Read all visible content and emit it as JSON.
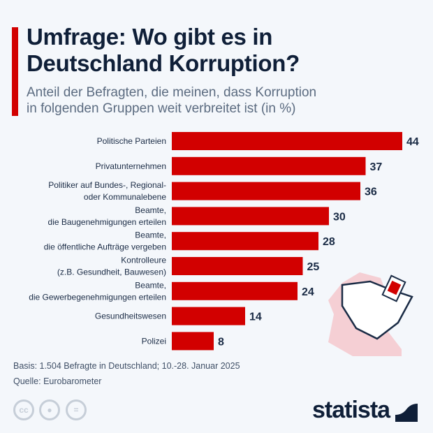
{
  "header": {
    "title_line1": "Umfrage: Wo gibt es in",
    "title_line2": "Deutschland Korruption?",
    "subtitle_line1": "Anteil der Befragten, die meinen, dass Korruption",
    "subtitle_line2": "in folgenden Gruppen weit verbreitet ist (in %)"
  },
  "chart_data": {
    "type": "bar",
    "orientation": "horizontal",
    "categories": [
      [
        "Politische Parteien"
      ],
      [
        "Privatunternehmen"
      ],
      [
        "Politiker auf Bundes-, Regional-",
        "oder Kommunalebene"
      ],
      [
        "Beamte,",
        "die Baugenehmigungen erteilen"
      ],
      [
        "Beamte,",
        "die öffentliche Aufträge vergeben"
      ],
      [
        "Kontrolleure",
        "(z.B. Gesundheit, Bauwesen)"
      ],
      [
        "Beamte,",
        "die Gewerbegenehmigungen erteilen"
      ],
      [
        "Gesundheitswesen"
      ],
      [
        "Polizei"
      ]
    ],
    "values": [
      44,
      37,
      36,
      30,
      28,
      25,
      24,
      14,
      8
    ],
    "unit": "%",
    "grid": false,
    "bar_color": "#d20000"
  },
  "footer": {
    "basis": "Basis: 1.504 Befragte in Deutschland; 10.-28. Januar 2025",
    "source": "Quelle: Eurobarometer",
    "cc1": "cc",
    "cc3": "=",
    "brand": "statista"
  },
  "colors": {
    "accent": "#d20000",
    "text": "#0f1f38",
    "map": "#f5cfd4"
  }
}
